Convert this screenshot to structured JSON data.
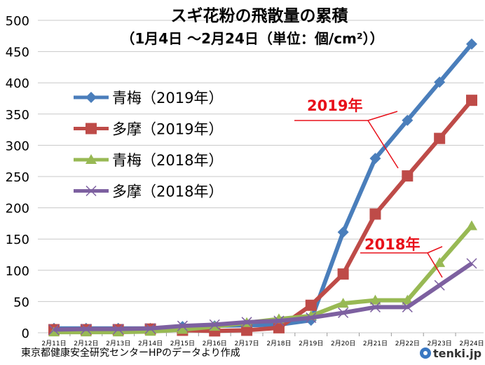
{
  "chart_data": {
    "type": "line",
    "title": "スギ花粉の飛散量の累積",
    "subtitle": "（1月4日 ～2月24日（単位：個/cm²））",
    "categories": [
      "2月11日",
      "2月12日",
      "2月13日",
      "2月14日",
      "2月15日",
      "2月16日",
      "2月17日",
      "2月18日",
      "2月19日",
      "2月20日",
      "2月21日",
      "2月22日",
      "2月23日",
      "2月24日"
    ],
    "ylim": [
      0,
      500
    ],
    "yticks": [
      0,
      50,
      100,
      150,
      200,
      250,
      300,
      350,
      400,
      450,
      500
    ],
    "grid": true,
    "legend_placement": "top-left",
    "series": [
      {
        "name": "青梅（2019年）",
        "color": "#4a7ebb",
        "marker": "diamond",
        "values": [
          7,
          7,
          7,
          7,
          10,
          11,
          12,
          13,
          20,
          161,
          279,
          340,
          401,
          462
        ]
      },
      {
        "name": "多摩（2019年）",
        "color": "#be4b48",
        "marker": "square",
        "values": [
          5,
          5,
          5,
          6,
          4,
          3,
          4,
          8,
          44,
          94,
          190,
          251,
          311,
          372
        ]
      },
      {
        "name": "青梅（2018年）",
        "color": "#98b954",
        "marker": "triangle",
        "values": [
          1,
          1,
          1,
          2,
          5,
          10,
          16,
          22,
          27,
          47,
          52,
          52,
          112,
          171
        ]
      },
      {
        "name": "多摩（2018年）",
        "color": "#7d60a0",
        "marker": "x",
        "values": [
          5,
          6,
          6,
          7,
          11,
          13,
          17,
          19,
          24,
          32,
          41,
          41,
          76,
          111
        ]
      }
    ],
    "annotations": [
      {
        "text": "2019年",
        "color": "#e8101a"
      },
      {
        "text": "2018年",
        "color": "#e8101a"
      }
    ]
  },
  "footer": {
    "source": "東京都健康安全研究センターHPのデータより作成",
    "logo": "tenki.jp"
  }
}
